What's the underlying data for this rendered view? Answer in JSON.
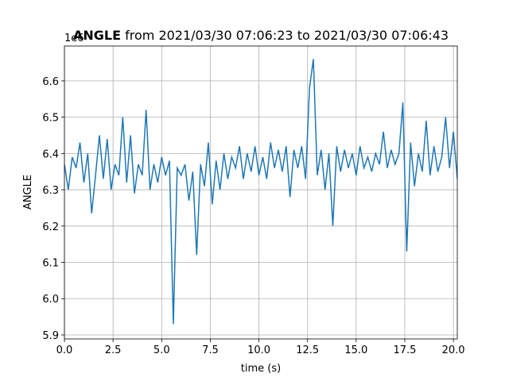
{
  "chart_data": {
    "type": "line",
    "title_bold": "ANGLE",
    "title": " from 2021/03/30 07:06:23 to 2021/03/30 07:06:43",
    "xlabel": "time (s)",
    "ylabel": "ANGLE",
    "y_offset_label": "1e6",
    "xlim": [
      0,
      20.2
    ],
    "ylim": [
      5.889,
      6.696
    ],
    "xticks": [
      {
        "value": 0,
        "label": "0.0"
      },
      2.5,
      {
        "value": 5,
        "label": "5.0"
      },
      7.5,
      {
        "value": 10,
        "label": "10.0"
      },
      12.5,
      {
        "value": 15,
        "label": "15.0"
      },
      17.5,
      {
        "value": 20,
        "label": "20.0"
      }
    ],
    "yticks": [
      5.9,
      {
        "value": 6,
        "label": "6.0"
      },
      6.1,
      6.2,
      6.3,
      6.4,
      6.5,
      6.6
    ],
    "grid": true,
    "x": [
      0,
      0.2,
      0.4,
      0.6,
      0.8,
      1.0,
      1.2,
      1.4,
      1.6,
      1.8,
      2.0,
      2.2,
      2.4,
      2.6,
      2.8,
      3.0,
      3.2,
      3.4,
      3.6,
      3.8,
      4.0,
      4.2,
      4.4,
      4.6,
      4.8,
      5.0,
      5.2,
      5.4,
      5.6,
      5.8,
      6.0,
      6.2,
      6.4,
      6.6,
      6.8,
      7.0,
      7.2,
      7.4,
      7.6,
      7.8,
      8.0,
      8.2,
      8.4,
      8.6,
      8.8,
      9.0,
      9.2,
      9.4,
      9.6,
      9.8,
      10.0,
      10.2,
      10.4,
      10.6,
      10.8,
      11.0,
      11.2,
      11.4,
      11.6,
      11.8,
      12.0,
      12.2,
      12.4,
      12.6,
      12.8,
      13.0,
      13.2,
      13.4,
      13.6,
      13.8,
      14.0,
      14.2,
      14.4,
      14.6,
      14.8,
      15.0,
      15.2,
      15.4,
      15.6,
      15.8,
      16.0,
      16.2,
      16.4,
      16.6,
      16.8,
      17.0,
      17.2,
      17.4,
      17.6,
      17.8,
      18.0,
      18.2,
      18.4,
      18.6,
      18.8,
      19.0,
      19.2,
      19.4,
      19.6,
      19.8,
      20.0,
      20.2
    ],
    "series": [
      {
        "name": "ANGLE",
        "color": "#1f77b4",
        "values": [
          6.37,
          6.3,
          6.39,
          6.36,
          6.43,
          6.32,
          6.4,
          6.235,
          6.34,
          6.45,
          6.33,
          6.44,
          6.3,
          6.37,
          6.34,
          6.5,
          6.32,
          6.45,
          6.29,
          6.37,
          6.34,
          6.52,
          6.3,
          6.37,
          6.32,
          6.39,
          6.34,
          6.38,
          5.93,
          6.36,
          6.34,
          6.37,
          6.27,
          6.35,
          6.12,
          6.37,
          6.31,
          6.43,
          6.26,
          6.38,
          6.3,
          6.4,
          6.33,
          6.39,
          6.36,
          6.42,
          6.33,
          6.4,
          6.35,
          6.42,
          6.34,
          6.39,
          6.33,
          6.43,
          6.36,
          6.41,
          6.35,
          6.42,
          6.28,
          6.41,
          6.36,
          6.42,
          6.33,
          6.58,
          6.66,
          6.34,
          6.41,
          6.3,
          6.4,
          6.2,
          6.42,
          6.35,
          6.41,
          6.36,
          6.4,
          6.34,
          6.42,
          6.36,
          6.39,
          6.35,
          6.4,
          6.37,
          6.46,
          6.36,
          6.41,
          6.37,
          6.4,
          6.54,
          6.13,
          6.43,
          6.31,
          6.4,
          6.35,
          6.49,
          6.34,
          6.42,
          6.35,
          6.39,
          6.5,
          6.36,
          6.46,
          6.33
        ]
      }
    ]
  }
}
